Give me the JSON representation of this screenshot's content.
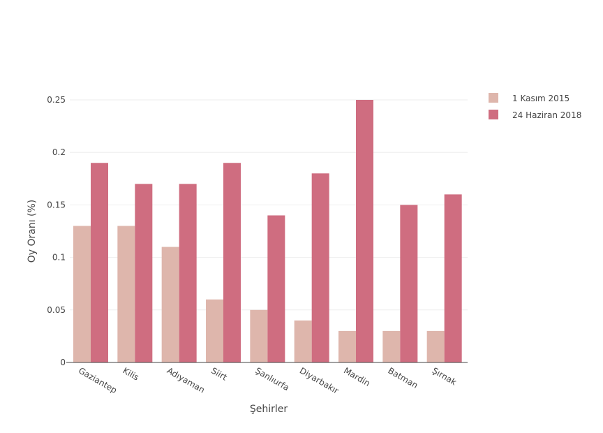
{
  "chart_data": {
    "type": "bar",
    "title": "",
    "xlabel": "Şehirler",
    "ylabel": "Oy Oranı (%)",
    "categories": [
      "Gaziantep",
      "Kilis",
      "Adıyaman",
      "Siirt",
      "Şanlıurfa",
      "Diyarbakır",
      "Mardin",
      "Batman",
      "Şırnak"
    ],
    "series": [
      {
        "name": "1 Kasım 2015",
        "values": [
          0.13,
          0.13,
          0.11,
          0.06,
          0.05,
          0.04,
          0.03,
          0.03,
          0.03
        ],
        "color": "#deb6ac"
      },
      {
        "name": "24 Haziran 2018",
        "values": [
          0.19,
          0.17,
          0.17,
          0.19,
          0.14,
          0.18,
          0.25,
          0.15,
          0.16
        ],
        "color": "#cf6d80"
      }
    ],
    "yticks": [
      0,
      0.05,
      0.1,
      0.15,
      0.2,
      0.25
    ],
    "ytick_labels": [
      "0",
      "0.05",
      "0.1",
      "0.15",
      "0.2",
      "0.25"
    ],
    "ylim": [
      0,
      0.25
    ],
    "grid": true,
    "legend_position": "top-right",
    "colors": {
      "axis": "#444444",
      "grid": "#eeeeee",
      "text": "#444444"
    }
  }
}
